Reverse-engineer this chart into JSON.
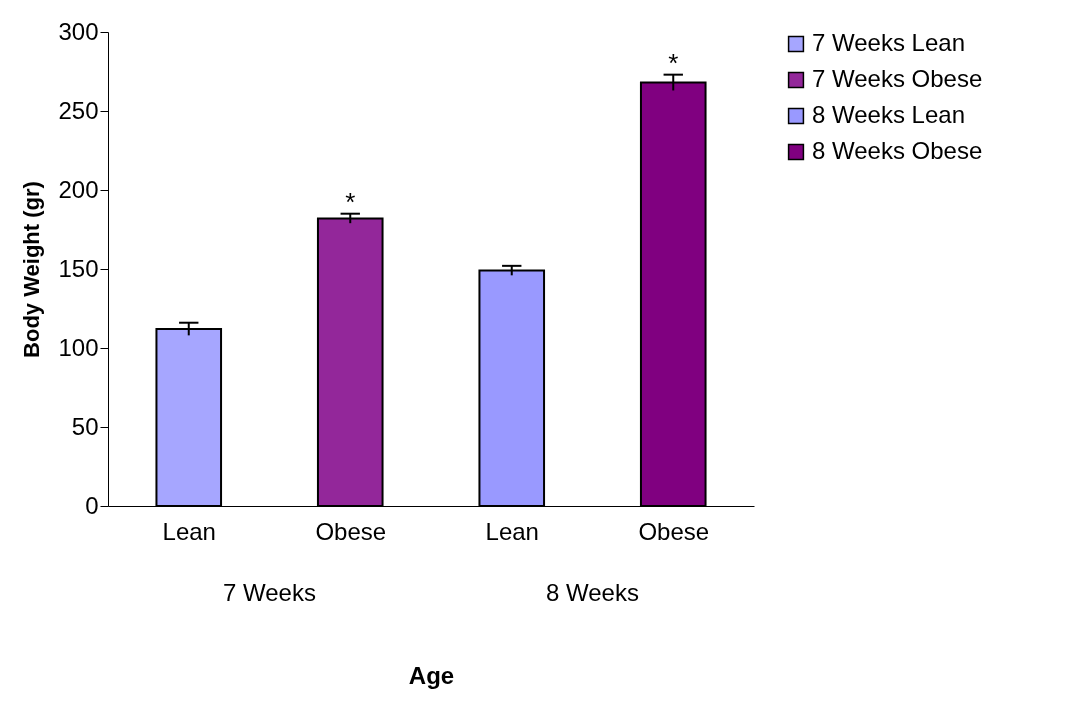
{
  "chart_data": {
    "type": "bar",
    "xlabel": "Age",
    "ylabel": "Body Weight (gr)",
    "categories": [
      "Lean",
      "Obese",
      "Lean",
      "Obese"
    ],
    "series": [
      {
        "name": "7 Weeks Lean",
        "color": "#a6a6ff",
        "values": [
          112,
          null,
          null,
          null
        ],
        "errors": [
          4,
          null,
          null,
          null
        ]
      },
      {
        "name": "7 Weeks Obese",
        "color": "#93279a",
        "values": [
          null,
          182,
          null,
          null
        ],
        "errors": [
          null,
          3,
          null,
          null
        ],
        "value_labels": [
          null,
          "*",
          null,
          null
        ]
      },
      {
        "name": "8 Weeks Lean",
        "color": "#9999ff",
        "values": [
          null,
          null,
          149,
          null
        ],
        "errors": [
          null,
          null,
          3,
          null
        ]
      },
      {
        "name": "8 Weeks Obese",
        "color": "#800080",
        "values": [
          null,
          null,
          null,
          268
        ],
        "errors": [
          null,
          null,
          null,
          5
        ],
        "value_labels": [
          null,
          null,
          null,
          "*"
        ]
      }
    ],
    "ylim": [
      0,
      300
    ],
    "yticks": [
      0,
      50,
      100,
      150,
      200,
      250,
      300
    ],
    "grid": false,
    "legend": "right",
    "annotations": [
      "7 Weeks",
      "8 Weeks"
    ]
  }
}
